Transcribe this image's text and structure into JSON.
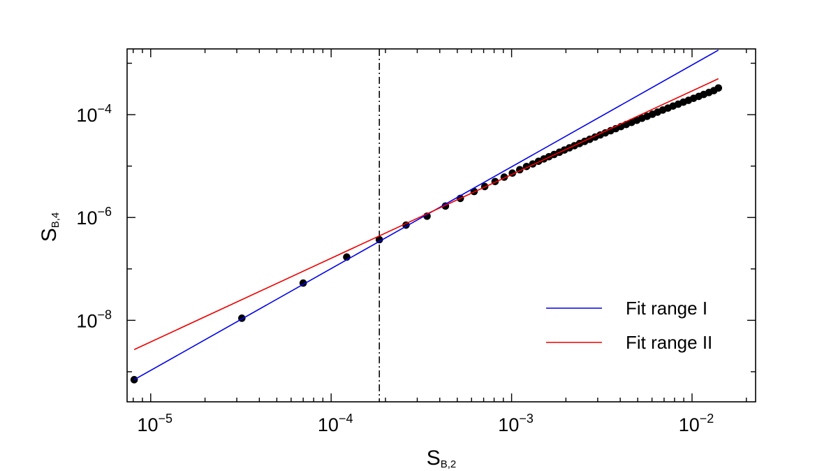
{
  "chart_data": {
    "type": "scatter",
    "xscale": "log",
    "yscale": "log",
    "xlim": [
      7.4e-06,
      0.0225
    ],
    "ylim": [
      2.6e-10,
      0.0019
    ],
    "xlabel": {
      "main": "S",
      "sub": "B,2"
    },
    "ylabel": {
      "main": "S",
      "sub": "B,4"
    },
    "xticks": [
      {
        "value": 1e-05,
        "base": "10",
        "exp": "−5"
      },
      {
        "value": 0.0001,
        "base": "10",
        "exp": "−4"
      },
      {
        "value": 0.001,
        "base": "10",
        "exp": "−3"
      },
      {
        "value": 0.01,
        "base": "10",
        "exp": "−2"
      }
    ],
    "yticks": [
      {
        "value": 1e-08,
        "base": "10",
        "exp": "−8"
      },
      {
        "value": 1e-06,
        "base": "10",
        "exp": "−6"
      },
      {
        "value": 0.0001,
        "base": "10",
        "exp": "−4"
      }
    ],
    "vline": {
      "x": 0.000185,
      "style": "dash-dot",
      "color": "#000000"
    },
    "series": [
      {
        "kind": "points",
        "color": "#000000",
        "x": [
          8.1e-06,
          3.2e-05,
          7e-05,
          0.000122,
          0.000185,
          0.00026,
          0.00034,
          0.00043,
          0.00052,
          0.00062,
          0.00071,
          0.00081,
          0.00091,
          0.00101,
          0.00111,
          0.00121,
          0.00131,
          0.00141,
          0.00151,
          0.00161,
          0.00172,
          0.00184,
          0.00196,
          0.00209,
          0.00223,
          0.00238,
          0.00254,
          0.00271,
          0.0029,
          0.0031,
          0.00331,
          0.00354,
          0.00378,
          0.00404,
          0.00432,
          0.00462,
          0.00494,
          0.00528,
          0.00564,
          0.00603,
          0.00644,
          0.00688,
          0.00735,
          0.00785,
          0.00838,
          0.00895,
          0.00955,
          0.0102,
          0.0109,
          0.0116,
          0.0124,
          0.0132,
          0.014
        ],
        "y": [
          7e-10,
          1.1e-08,
          5.3e-08,
          1.7e-07,
          3.7e-07,
          7.1e-07,
          1.06e-06,
          1.67e-06,
          2.35e-06,
          3.2e-06,
          4e-06,
          5e-06,
          6.1e-06,
          7.3e-06,
          8.5e-06,
          9.8e-06,
          1.1e-05,
          1.24e-05,
          1.38e-05,
          1.52e-05,
          1.68e-05,
          1.86e-05,
          2.05e-05,
          2.26e-05,
          2.49e-05,
          2.75e-05,
          3.02e-05,
          3.32e-05,
          3.66e-05,
          4.03e-05,
          4.42e-05,
          4.87e-05,
          5.34e-05,
          5.86e-05,
          6.44e-05,
          7.06e-05,
          7.75e-05,
          8.5e-05,
          9.3e-05,
          0.000102,
          0.000112,
          0.000123,
          0.000134,
          0.000147,
          0.00016,
          0.000175,
          0.00019,
          0.000208,
          0.000227,
          0.000247,
          0.00027,
          0.000293,
          0.00033
        ]
      },
      {
        "name": "Fit range I",
        "kind": "line",
        "color": "#0000ee",
        "x": [
          8.1e-06,
          0.014
        ],
        "y": [
          7e-10,
          0.0018
        ]
      },
      {
        "name": "Fit range II",
        "kind": "line",
        "color": "#ee0000",
        "x": [
          8.1e-06,
          0.014
        ],
        "y": [
          2.7e-09,
          0.0005
        ]
      }
    ],
    "legend": {
      "position": "bottom-right",
      "entries": [
        "Fit range I",
        "Fit range II"
      ]
    },
    "grid": false
  }
}
